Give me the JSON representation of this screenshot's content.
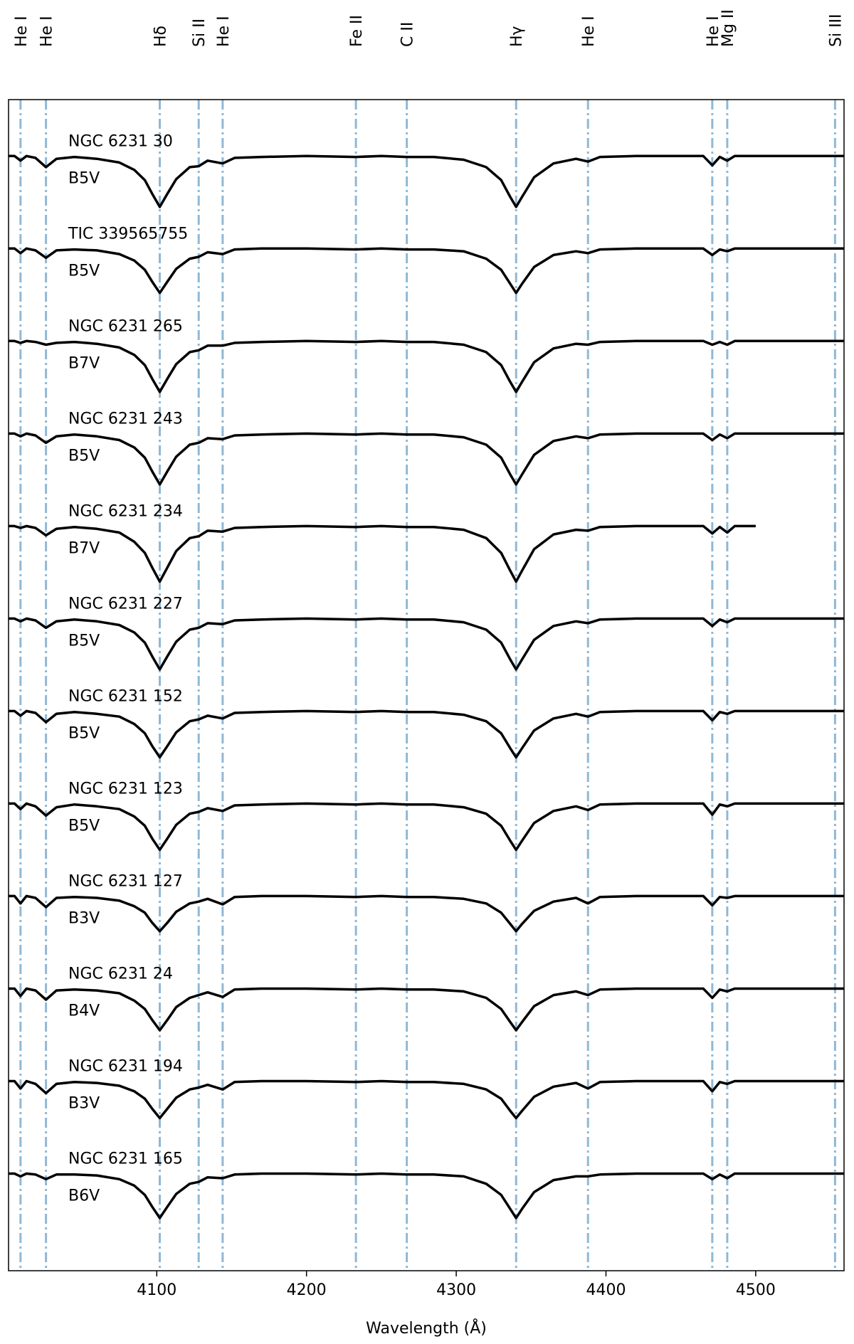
{
  "chart_data": {
    "type": "line",
    "xlabel": "Wavelength (Å)",
    "xlim": [
      4001,
      4559
    ],
    "xticks": [
      4100,
      4200,
      4300,
      4400,
      4500
    ],
    "ylim": [
      -0.05,
      12.61
    ],
    "line_color": "#8fb8d6",
    "lines": [
      {
        "label": "He I",
        "wavelength": 4009
      },
      {
        "label": "He I",
        "wavelength": 4026
      },
      {
        "label": "Hδ",
        "wavelength": 4102
      },
      {
        "label": "Si II",
        "wavelength": 4128
      },
      {
        "label": "He I",
        "wavelength": 4144
      },
      {
        "label": "Fe II",
        "wavelength": 4233
      },
      {
        "label": "C II",
        "wavelength": 4267
      },
      {
        "label": "Hγ",
        "wavelength": 4340
      },
      {
        "label": "He I",
        "wavelength": 4388
      },
      {
        "label": "He I",
        "wavelength": 4471
      },
      {
        "label": "Mg II",
        "wavelength": 4481
      },
      {
        "label": "Si III",
        "wavelength": 4553
      }
    ],
    "x": [
      4001,
      4005,
      4009,
      4013,
      4019,
      4026,
      4033,
      4045,
      4060,
      4075,
      4085,
      4092,
      4097,
      4102,
      4107,
      4113,
      4122,
      4128,
      4134,
      4144,
      4152,
      4170,
      4200,
      4233,
      4250,
      4267,
      4285,
      4305,
      4320,
      4330,
      4336,
      4340,
      4344,
      4352,
      4365,
      4380,
      4388,
      4396,
      4420,
      4450,
      4465,
      4471,
      4476,
      4481,
      4486,
      4500,
      4530,
      4553,
      4559
    ],
    "series": [
      {
        "name": "NGC 6231 30",
        "spectral_type": "B5V",
        "color": "#000000",
        "values": [
          12,
          12,
          11.95,
          12,
          11.98,
          11.88,
          11.97,
          11.99,
          11.97,
          11.93,
          11.85,
          11.74,
          11.59,
          11.45,
          11.59,
          11.75,
          11.88,
          11.89,
          11.95,
          11.92,
          11.98,
          11.99,
          12,
          11.99,
          12,
          11.99,
          11.99,
          11.96,
          11.88,
          11.74,
          11.56,
          11.45,
          11.56,
          11.77,
          11.92,
          11.97,
          11.94,
          11.99,
          12,
          12,
          12,
          11.9,
          11.99,
          11.95,
          12,
          12,
          12,
          12,
          12
        ]
      },
      {
        "name": "TIC 339565755",
        "spectral_type": "B5V",
        "color": "#000000",
        "values": [
          11,
          11,
          10.95,
          11,
          10.98,
          10.9,
          10.98,
          10.99,
          10.98,
          10.94,
          10.87,
          10.77,
          10.64,
          10.52,
          10.64,
          10.78,
          10.89,
          10.91,
          10.96,
          10.94,
          10.99,
          11,
          11,
          10.99,
          11,
          10.99,
          10.99,
          10.97,
          10.89,
          10.77,
          10.62,
          10.52,
          10.62,
          10.8,
          10.93,
          10.97,
          10.95,
          10.99,
          11,
          11,
          11,
          10.93,
          10.99,
          10.97,
          11,
          11,
          11,
          11,
          11
        ]
      },
      {
        "name": "NGC 6231 265",
        "spectral_type": "B7V",
        "color": "#000000",
        "values": [
          10,
          10,
          9.98,
          10,
          9.99,
          9.96,
          9.98,
          9.99,
          9.97,
          9.93,
          9.85,
          9.74,
          9.59,
          9.45,
          9.59,
          9.75,
          9.88,
          9.9,
          9.95,
          9.95,
          9.98,
          9.99,
          10,
          9.99,
          10,
          9.99,
          9.99,
          9.96,
          9.88,
          9.74,
          9.56,
          9.45,
          9.56,
          9.77,
          9.92,
          9.97,
          9.96,
          9.99,
          10,
          10,
          10,
          9.96,
          9.99,
          9.96,
          10,
          10,
          10,
          10,
          10
        ]
      },
      {
        "name": "NGC 6231 243",
        "spectral_type": "B5V",
        "color": "#000000",
        "values": [
          9,
          9,
          8.97,
          9,
          8.98,
          8.9,
          8.97,
          8.99,
          8.97,
          8.93,
          8.85,
          8.74,
          8.59,
          8.45,
          8.59,
          8.75,
          8.88,
          8.9,
          8.95,
          8.94,
          8.98,
          8.99,
          9,
          8.99,
          9,
          8.99,
          8.99,
          8.96,
          8.88,
          8.74,
          8.56,
          8.45,
          8.56,
          8.77,
          8.92,
          8.97,
          8.95,
          8.99,
          9,
          9,
          9,
          8.93,
          8.99,
          8.95,
          9,
          9,
          9,
          9,
          9
        ]
      },
      {
        "name": "NGC 6231 234",
        "spectral_type": "B7V",
        "color": "#000000",
        "values": [
          8,
          8,
          7.98,
          8,
          7.98,
          7.9,
          7.97,
          7.99,
          7.97,
          7.93,
          7.83,
          7.71,
          7.55,
          7.4,
          7.55,
          7.73,
          7.87,
          7.89,
          7.95,
          7.94,
          7.98,
          7.99,
          8,
          7.99,
          8,
          7.99,
          7.99,
          7.96,
          7.87,
          7.71,
          7.52,
          7.4,
          7.52,
          7.75,
          7.91,
          7.96,
          7.95,
          7.99,
          8,
          8,
          8,
          7.92,
          7.99,
          7.93,
          8,
          8,
          null,
          null,
          null
        ]
      },
      {
        "name": "NGC 6231 227",
        "spectral_type": "B5V",
        "color": "#000000",
        "values": [
          7,
          7,
          6.97,
          7,
          6.98,
          6.9,
          6.97,
          6.99,
          6.97,
          6.93,
          6.85,
          6.74,
          6.59,
          6.45,
          6.59,
          6.75,
          6.88,
          6.9,
          6.95,
          6.94,
          6.98,
          6.99,
          7,
          6.99,
          7,
          6.99,
          6.99,
          6.96,
          6.88,
          6.74,
          6.56,
          6.45,
          6.56,
          6.77,
          6.92,
          6.97,
          6.95,
          6.99,
          7,
          7,
          7,
          6.92,
          6.99,
          6.96,
          7,
          7,
          7,
          7,
          7
        ]
      },
      {
        "name": "NGC 6231 152",
        "spectral_type": "B5V",
        "color": "#000000",
        "values": [
          6,
          6,
          5.95,
          6,
          5.98,
          5.88,
          5.97,
          5.99,
          5.97,
          5.94,
          5.86,
          5.76,
          5.62,
          5.5,
          5.62,
          5.77,
          5.89,
          5.91,
          5.95,
          5.92,
          5.98,
          5.99,
          6,
          5.99,
          6,
          5.99,
          5.99,
          5.96,
          5.89,
          5.76,
          5.6,
          5.5,
          5.6,
          5.79,
          5.92,
          5.97,
          5.94,
          5.99,
          6,
          6,
          6,
          5.9,
          5.99,
          5.97,
          6,
          6,
          6,
          6,
          6
        ]
      },
      {
        "name": "NGC 6231 123",
        "spectral_type": "B5V",
        "color": "#000000",
        "values": [
          5,
          5,
          4.94,
          5,
          4.97,
          4.87,
          4.96,
          4.99,
          4.97,
          4.94,
          4.86,
          4.76,
          4.62,
          4.5,
          4.62,
          4.77,
          4.89,
          4.91,
          4.95,
          4.92,
          4.98,
          4.99,
          5,
          4.99,
          5,
          4.99,
          4.99,
          4.96,
          4.89,
          4.76,
          4.6,
          4.5,
          4.6,
          4.79,
          4.92,
          4.97,
          4.93,
          4.99,
          5,
          5,
          5,
          4.88,
          4.99,
          4.97,
          5,
          5,
          5,
          5,
          5
        ]
      },
      {
        "name": "NGC 6231 127",
        "spectral_type": "B3V",
        "color": "#000000",
        "values": [
          4,
          4,
          3.92,
          4,
          3.98,
          3.88,
          3.98,
          3.99,
          3.98,
          3.95,
          3.89,
          3.82,
          3.71,
          3.62,
          3.71,
          3.83,
          3.92,
          3.94,
          3.97,
          3.91,
          3.99,
          4,
          4,
          3.99,
          4,
          3.99,
          3.99,
          3.97,
          3.92,
          3.82,
          3.7,
          3.62,
          3.7,
          3.84,
          3.94,
          3.98,
          3.92,
          3.99,
          4,
          4,
          4,
          3.9,
          3.99,
          3.98,
          4,
          4,
          4,
          4,
          4
        ]
      },
      {
        "name": "NGC 6231 24",
        "spectral_type": "B4V",
        "color": "#000000",
        "values": [
          3,
          3,
          2.92,
          3,
          2.98,
          2.88,
          2.98,
          2.99,
          2.98,
          2.95,
          2.87,
          2.78,
          2.66,
          2.55,
          2.66,
          2.8,
          2.9,
          2.93,
          2.96,
          2.91,
          2.99,
          3,
          3,
          2.99,
          3,
          2.99,
          2.99,
          2.97,
          2.9,
          2.78,
          2.64,
          2.55,
          2.64,
          2.81,
          2.93,
          2.97,
          2.93,
          2.99,
          3,
          3,
          3,
          2.9,
          2.99,
          2.97,
          3,
          3,
          3,
          3,
          3
        ]
      },
      {
        "name": "NGC 6231 194",
        "spectral_type": "B3V",
        "color": "#000000",
        "values": [
          2,
          2,
          1.92,
          2,
          1.97,
          1.87,
          1.97,
          1.99,
          1.98,
          1.95,
          1.89,
          1.81,
          1.7,
          1.6,
          1.7,
          1.82,
          1.91,
          1.93,
          1.96,
          1.91,
          1.99,
          2,
          2,
          1.99,
          2,
          1.99,
          1.99,
          1.97,
          1.91,
          1.81,
          1.68,
          1.6,
          1.68,
          1.83,
          1.94,
          1.98,
          1.92,
          1.99,
          2,
          2,
          2,
          1.89,
          1.99,
          1.97,
          2,
          2,
          2,
          2,
          2
        ]
      },
      {
        "name": "NGC 6231 165",
        "spectral_type": "B6V",
        "color": "#000000",
        "values": [
          1,
          1,
          0.97,
          1,
          0.99,
          0.94,
          0.99,
          0.99,
          0.98,
          0.94,
          0.87,
          0.77,
          0.64,
          0.52,
          0.64,
          0.78,
          0.89,
          0.91,
          0.96,
          0.95,
          0.99,
          1,
          1,
          0.99,
          1,
          0.99,
          0.99,
          0.97,
          0.89,
          0.77,
          0.62,
          0.52,
          0.62,
          0.8,
          0.93,
          0.97,
          0.97,
          0.99,
          1,
          1,
          1,
          0.94,
          0.99,
          0.95,
          1,
          1,
          1,
          1,
          1
        ]
      }
    ]
  }
}
